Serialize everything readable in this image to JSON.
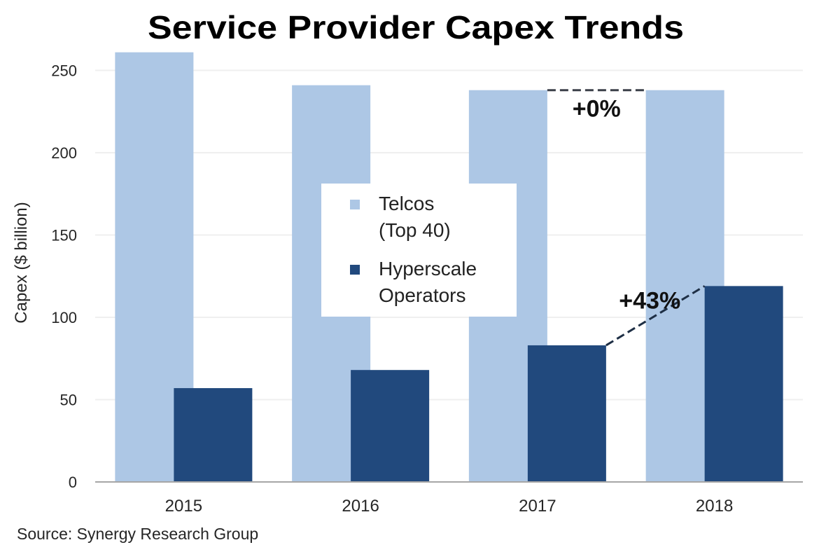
{
  "chart_data": {
    "type": "bar",
    "title": "Service Provider Capex Trends",
    "xlabel": "",
    "ylabel": "Capex ($ billion)",
    "categories": [
      "2015",
      "2016",
      "2017",
      "2018"
    ],
    "ylim": [
      0,
      260
    ],
    "yticks": [
      0,
      50,
      100,
      150,
      200,
      250
    ],
    "grid": true,
    "series": [
      {
        "name": "Telcos (Top 40)",
        "legend_lines": [
          "Telcos",
          "(Top 40)"
        ],
        "color": "#adc7e5",
        "values": [
          261,
          241,
          238,
          238
        ]
      },
      {
        "name": "Hyperscale Operators",
        "legend_lines": [
          "Hyperscale",
          "Operators"
        ],
        "color": "#21497d",
        "values": [
          57,
          68,
          83,
          119
        ]
      }
    ],
    "legend_position": "center",
    "annotations": [
      {
        "text": "+0%",
        "series": 0,
        "from": "2017",
        "to": "2018"
      },
      {
        "text": "+43%",
        "series": 1,
        "from": "2017",
        "to": "2018"
      }
    ],
    "source": "Source: Synergy Research Group"
  }
}
